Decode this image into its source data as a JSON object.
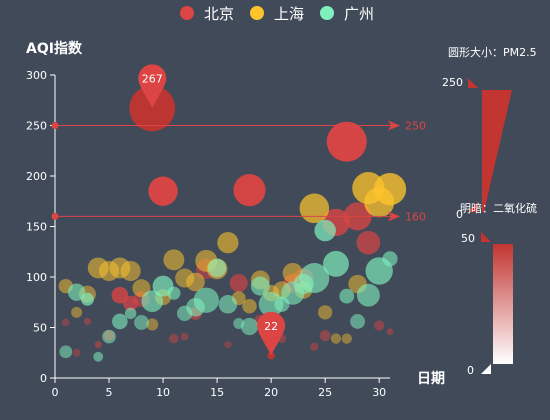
{
  "chart_data": {
    "type": "scatter",
    "title": "",
    "legend": {
      "position": "top-center",
      "items": [
        {
          "name": "北京",
          "color": "#dd4444"
        },
        {
          "name": "上海",
          "color": "#fec42c"
        },
        {
          "name": "广州",
          "color": "#80f1be"
        }
      ]
    },
    "xlabel": "日期",
    "ylabel": "AQI指数",
    "xlim": [
      0,
      31
    ],
    "ylim": [
      0,
      300
    ],
    "x_ticks": [
      0,
      5,
      10,
      15,
      20,
      25,
      30
    ],
    "y_ticks": [
      0,
      50,
      100,
      150,
      200,
      250,
      300
    ],
    "grid": false,
    "size_encoding": {
      "title": "圆形大小：PM2.5",
      "max_label": "250",
      "min_label": "0",
      "max": 250,
      "min": 0,
      "color": "#c23531"
    },
    "opacity_encoding": {
      "title": "明暗：二氧化硫",
      "max_label": "50",
      "min_label": "0",
      "max": 50,
      "min": 0,
      "color": "#c23531"
    },
    "mark_lines": [
      {
        "series": "北京",
        "value": 250,
        "label": "250"
      },
      {
        "series": "北京",
        "value": 160,
        "label": "160"
      }
    ],
    "mark_points": [
      {
        "series": "北京",
        "x": 9,
        "y": 267,
        "label": "267"
      },
      {
        "series": "北京",
        "x": 20,
        "y": 22,
        "label": "22"
      }
    ],
    "series": [
      {
        "name": "北京",
        "color": "#dd4444",
        "points": [
          [
            1,
            55,
            9,
            5
          ],
          [
            2,
            25,
            11,
            4
          ],
          [
            3,
            56,
            7,
            6
          ],
          [
            4,
            33,
            7,
            12
          ],
          [
            5,
            42,
            24,
            30
          ],
          [
            6,
            82,
            58,
            35
          ],
          [
            7,
            74,
            49,
            30
          ],
          [
            8,
            78,
            55,
            18
          ],
          [
            9,
            267,
            216,
            46
          ],
          [
            10,
            185,
            127,
            50
          ],
          [
            11,
            39,
            19,
            8
          ],
          [
            12,
            41,
            11,
            6
          ],
          [
            13,
            64,
            38,
            20
          ],
          [
            14,
            108,
            79,
            14
          ],
          [
            15,
            108,
            63,
            18
          ],
          [
            16,
            33,
            6,
            4
          ],
          [
            17,
            94,
            66,
            24
          ],
          [
            18,
            186,
            142,
            49
          ],
          [
            19,
            57,
            31,
            12
          ],
          [
            20,
            22,
            8,
            2
          ],
          [
            21,
            39,
            15,
            8
          ],
          [
            22,
            94,
            69,
            25
          ],
          [
            23,
            99,
            73,
            24
          ],
          [
            24,
            31,
            12,
            8
          ],
          [
            25,
            42,
            27,
            12
          ],
          [
            26,
            154,
            117,
            36
          ],
          [
            27,
            234,
            185,
            50
          ],
          [
            28,
            160,
            120,
            34
          ],
          [
            29,
            134,
            96,
            28
          ],
          [
            30,
            52,
            24,
            10
          ],
          [
            31,
            46,
            5,
            6
          ]
        ]
      },
      {
        "name": "上海",
        "color": "#fec42c",
        "points": [
          [
            1,
            91,
            45,
            12
          ],
          [
            2,
            65,
            27,
            8
          ],
          [
            3,
            83,
            60,
            10
          ],
          [
            4,
            109,
            81,
            16
          ],
          [
            5,
            106,
            77,
            14
          ],
          [
            6,
            109,
            81,
            16
          ],
          [
            7,
            106,
            77,
            14
          ],
          [
            8,
            89,
            65,
            12
          ],
          [
            9,
            53,
            33,
            8
          ],
          [
            10,
            80,
            55,
            12
          ],
          [
            11,
            117,
            81,
            16
          ],
          [
            12,
            99,
            71,
            12
          ],
          [
            13,
            95,
            69,
            14
          ],
          [
            14,
            116,
            87,
            16
          ],
          [
            15,
            108,
            80,
            14
          ],
          [
            16,
            134,
            83,
            20
          ],
          [
            17,
            79,
            43,
            12
          ],
          [
            18,
            71,
            46,
            12
          ],
          [
            19,
            97,
            71,
            14
          ],
          [
            20,
            84,
            57,
            12
          ],
          [
            21,
            87,
            63,
            12
          ],
          [
            22,
            104,
            77,
            14
          ],
          [
            23,
            87,
            62,
            12
          ],
          [
            24,
            168,
            128,
            30
          ],
          [
            25,
            65,
            45,
            10
          ],
          [
            26,
            39,
            24,
            6
          ],
          [
            27,
            39,
            24,
            6
          ],
          [
            28,
            93,
            68,
            12
          ],
          [
            29,
            188,
            143,
            34
          ],
          [
            30,
            174,
            131,
            32
          ],
          [
            31,
            187,
            143,
            36
          ]
        ]
      },
      {
        "name": "广州",
        "color": "#80f1be",
        "points": [
          [
            1,
            26,
            37,
            14
          ],
          [
            2,
            85,
            62,
            20
          ],
          [
            3,
            78,
            38,
            26
          ],
          [
            4,
            21,
            21,
            16
          ],
          [
            5,
            41,
            42,
            14
          ],
          [
            6,
            56,
            52,
            20
          ],
          [
            7,
            64,
            30,
            18
          ],
          [
            8,
            55,
            48,
            14
          ],
          [
            9,
            76,
            85,
            22
          ],
          [
            10,
            91,
            81,
            26
          ],
          [
            11,
            84,
            39,
            20
          ],
          [
            12,
            64,
            51,
            16
          ],
          [
            13,
            70,
            69,
            18
          ],
          [
            14,
            77,
            105,
            20
          ],
          [
            15,
            109,
            68,
            22
          ],
          [
            16,
            73,
            68,
            18
          ],
          [
            17,
            54,
            27,
            14
          ],
          [
            18,
            51,
            61,
            16
          ],
          [
            19,
            91,
            71,
            20
          ],
          [
            20,
            73,
            102,
            20
          ],
          [
            21,
            73,
            50,
            18
          ],
          [
            22,
            84,
            94,
            20
          ],
          [
            23,
            93,
            77,
            22
          ],
          [
            24,
            99,
            130,
            24
          ],
          [
            25,
            146,
            84,
            30
          ],
          [
            26,
            113,
            108,
            28
          ],
          [
            27,
            81,
            48,
            20
          ],
          [
            28,
            56,
            48,
            16
          ],
          [
            29,
            82,
            92,
            22
          ],
          [
            30,
            106,
            116,
            26
          ],
          [
            31,
            118,
            50,
            20
          ]
        ]
      }
    ]
  }
}
